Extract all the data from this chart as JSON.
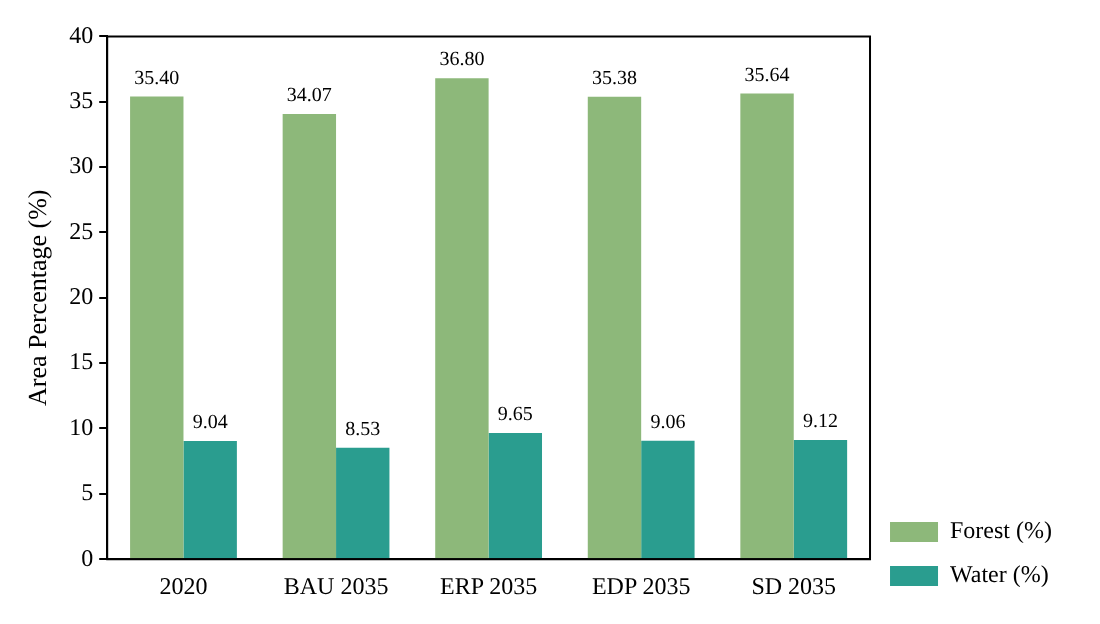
{
  "chart_data": {
    "type": "bar",
    "ylabel": "Area Percentage (%)",
    "categories": [
      "2020",
      "BAU 2035",
      "ERP 2035",
      "EDP 2035",
      "SD 2035"
    ],
    "series": [
      {
        "name": "Forest (%)",
        "color": "#8db87a",
        "values": [
          35.4,
          34.07,
          36.8,
          35.38,
          35.64
        ],
        "value_labels": [
          "35.40",
          "34.07",
          "36.80",
          "35.38",
          "35.64"
        ]
      },
      {
        "name": "Water (%)",
        "color": "#2a9d8f",
        "values": [
          9.04,
          8.53,
          9.65,
          9.06,
          9.12
        ],
        "value_labels": [
          "9.04",
          "8.53",
          "9.65",
          "9.06",
          "9.12"
        ]
      }
    ],
    "ylim": [
      0,
      40
    ],
    "yticks": [
      0,
      5,
      10,
      15,
      20,
      25,
      30,
      35,
      40
    ],
    "grid": false,
    "legend": "bottom right"
  }
}
